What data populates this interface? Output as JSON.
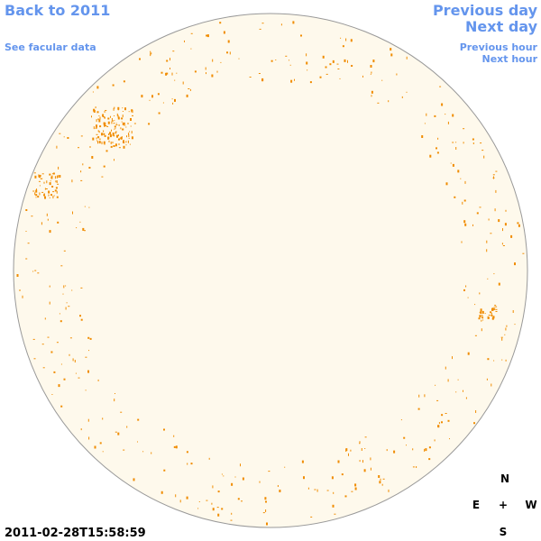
{
  "navigation": {
    "back": "Back to 2011",
    "facular": "See facular data",
    "previous_day": "Previous day",
    "next_day": "Next day",
    "previous_hour": "Previous hour",
    "next_hour": "Next hour"
  },
  "timestamp": "2011-02-28T15:58:59",
  "compass": {
    "north": "N",
    "east": "E",
    "center": "+",
    "west": "W",
    "south": "S"
  }
}
